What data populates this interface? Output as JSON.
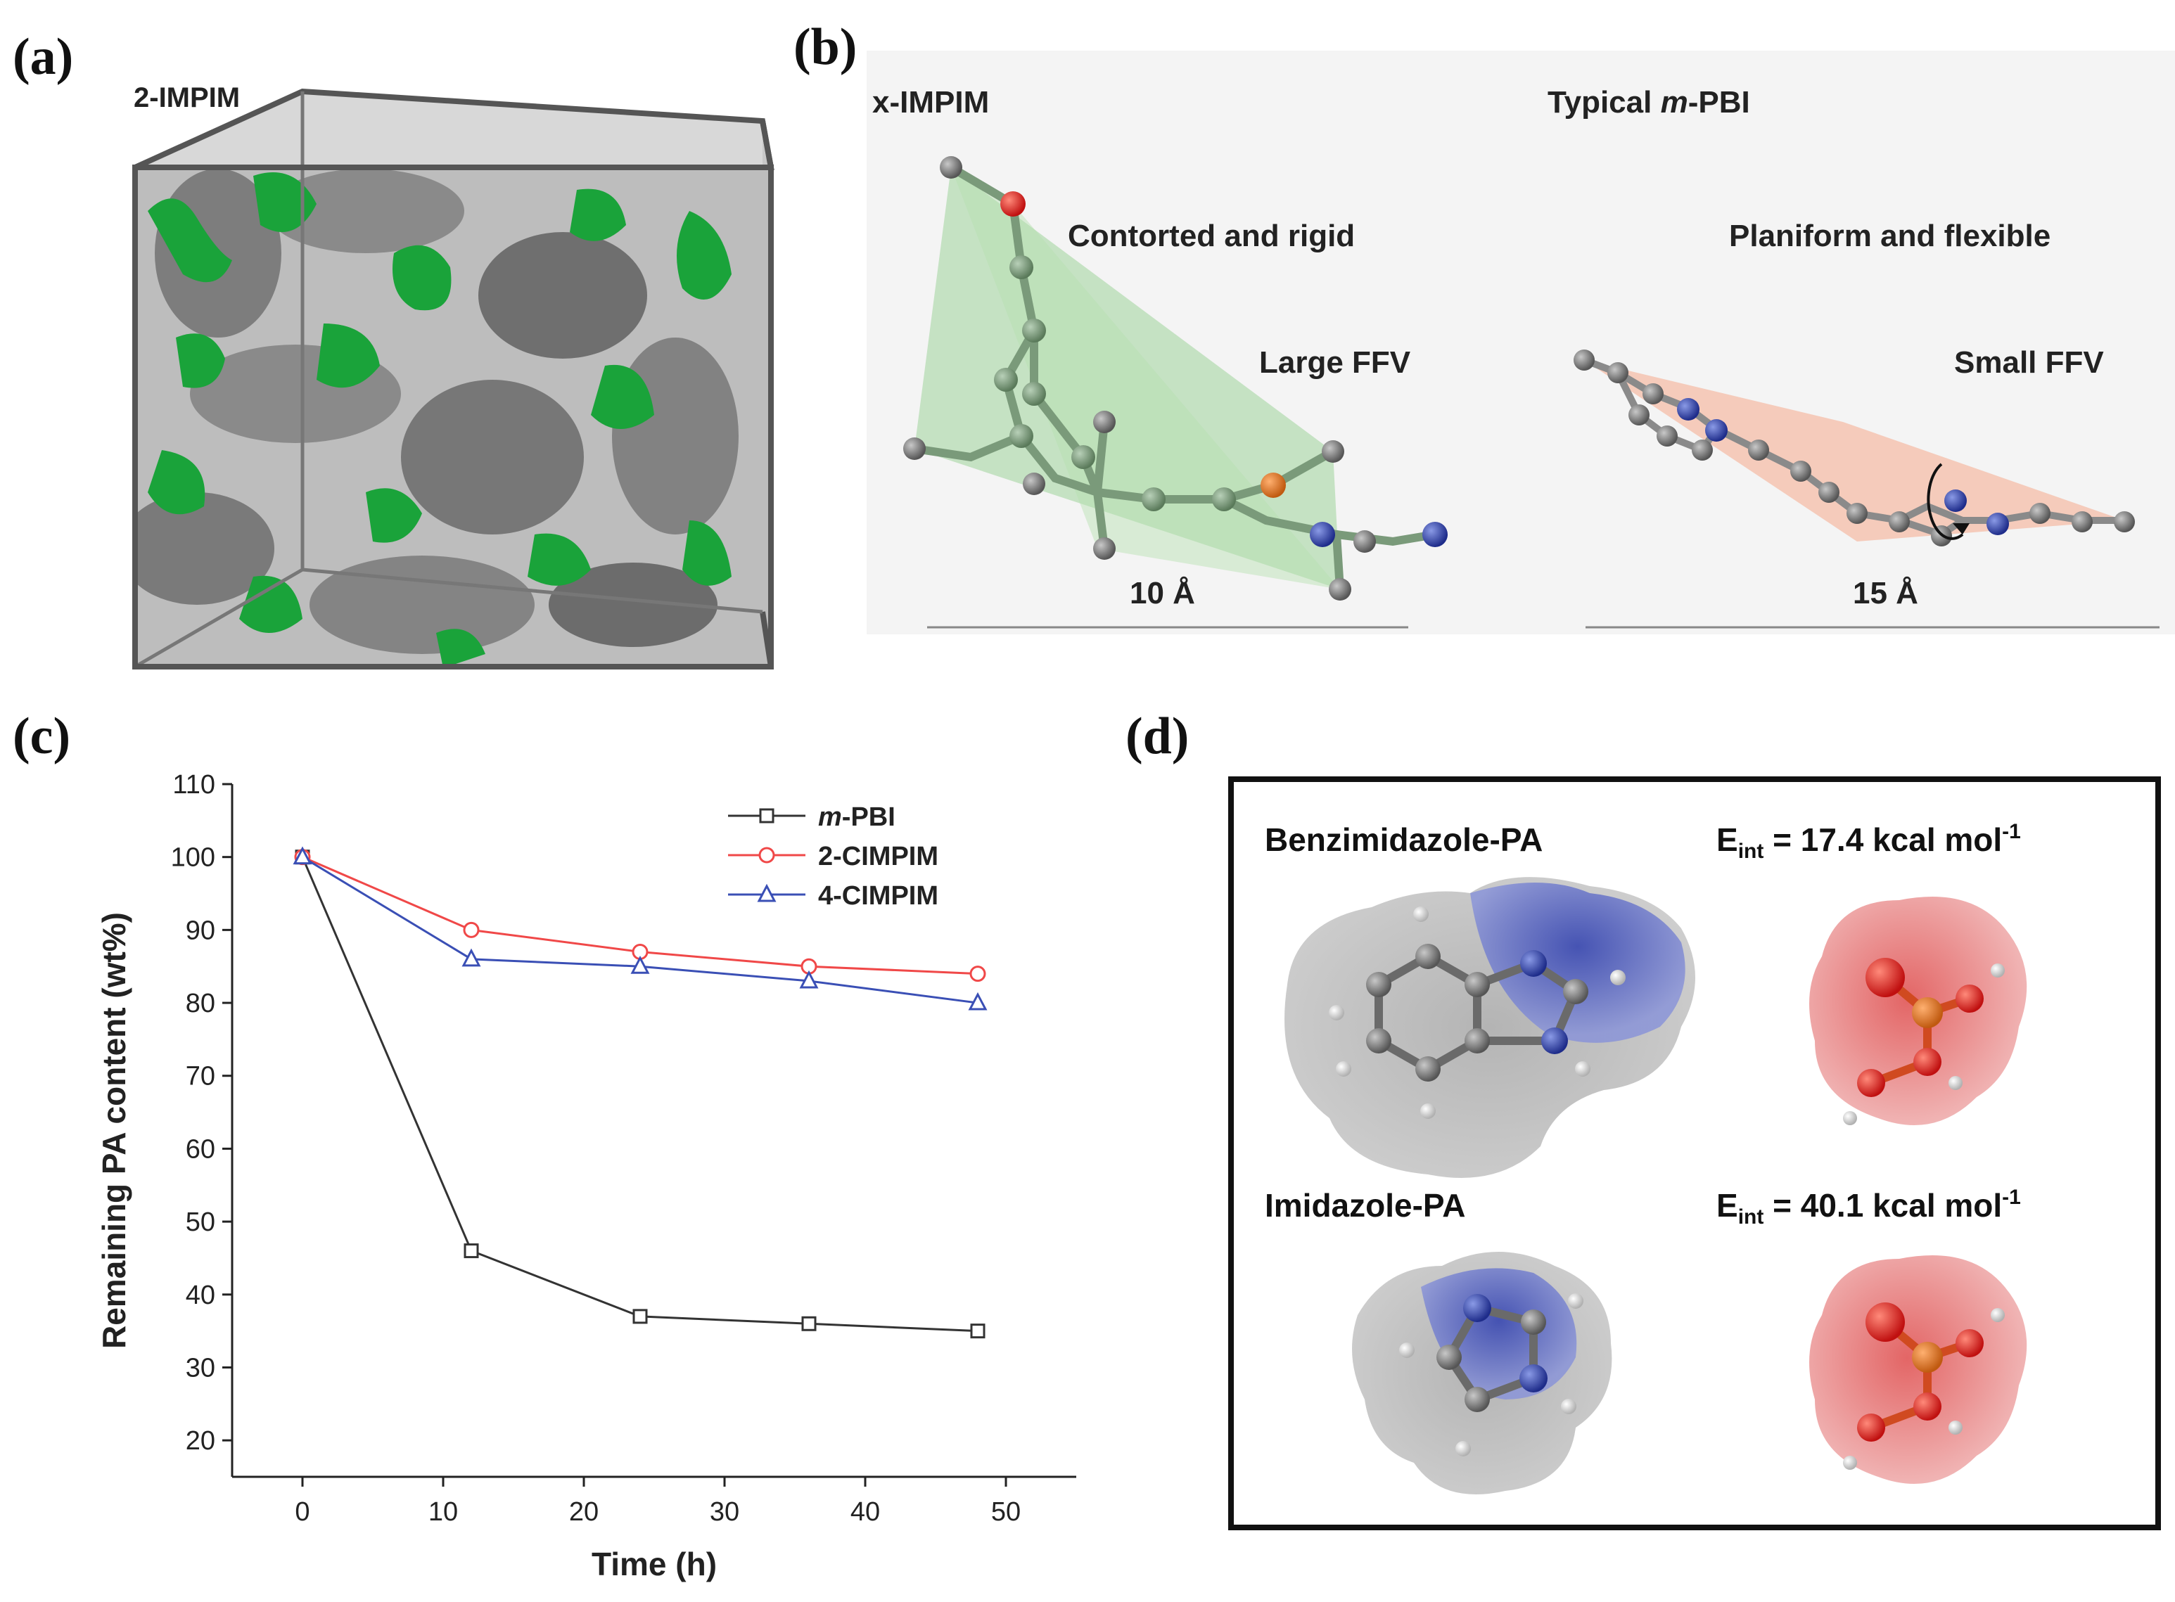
{
  "panels": {
    "a": {
      "label": "(a)",
      "title": "2-IMPIM"
    },
    "b": {
      "label": "(b)",
      "left": {
        "title": "x-IMPIM",
        "desc": "Contorted and rigid",
        "ffv": "Large FFV",
        "length": "10 Å",
        "polyhedron_color": "#9fd49a"
      },
      "right": {
        "title_prefix": "Typical ",
        "title_italic": "m",
        "title_suffix": "-PBI",
        "desc": "Planiform and flexible",
        "ffv": "Small FFV",
        "length": "15 Å",
        "polyhedron_color": "#f5a98c"
      }
    },
    "c": {
      "label": "(c)"
    },
    "d": {
      "label": "(d)",
      "top_title": "Benzimidazole-PA",
      "top_energy": {
        "prefix": "E",
        "sub": "int",
        "value": " = 17.4 kcal mol",
        "sup": "-1"
      },
      "bottom_title": "Imidazole-PA",
      "bottom_energy": {
        "prefix": "E",
        "sub": "int",
        "value": " = 40.1 kcal mol",
        "sup": "-1"
      }
    }
  },
  "colors": {
    "green": "#1aa33a",
    "gray": "#9a9a9a",
    "blue": "#3a4fb5",
    "red": "#e03030"
  },
  "chart_data": {
    "type": "line",
    "xlabel": "Time (h)",
    "ylabel": "Remaining PA content (wt%)",
    "xlim": [
      -5,
      55
    ],
    "ylim": [
      15,
      110
    ],
    "xticks": [
      0,
      10,
      20,
      30,
      40,
      50
    ],
    "yticks": [
      20,
      30,
      40,
      50,
      60,
      70,
      80,
      90,
      100,
      110
    ],
    "x": [
      0,
      12,
      24,
      36,
      48
    ],
    "legend_position": "top-right",
    "series": [
      {
        "name_italic": "m",
        "name_suffix": "-PBI",
        "color": "#333333",
        "marker": "square",
        "values": [
          100,
          46,
          37,
          36,
          35
        ]
      },
      {
        "name": "2-CIMPIM",
        "color": "#f04848",
        "marker": "circle",
        "values": [
          100,
          90,
          87,
          85,
          84
        ]
      },
      {
        "name": "4-CIMPIM",
        "color": "#3a4fb5",
        "marker": "triangle",
        "values": [
          100,
          86,
          85,
          83,
          80
        ]
      }
    ]
  }
}
